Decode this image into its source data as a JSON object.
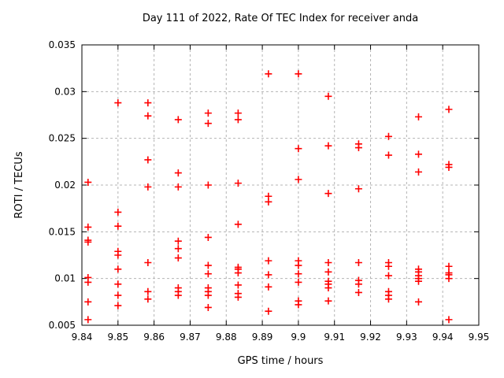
{
  "window": {
    "background": "#ffffff"
  },
  "chart_data": {
    "type": "scatter",
    "title": "Day 111 of 2022, Rate Of TEC Index for receiver anda",
    "xlabel": "GPS time / hours",
    "ylabel": "ROTI / TECUs",
    "xlim": [
      9.84,
      9.95
    ],
    "ylim": [
      0.005,
      0.035
    ],
    "xtick_values": [
      9.84,
      9.85,
      9.86,
      9.87,
      9.88,
      9.89,
      9.9,
      9.91,
      9.92,
      9.93,
      9.94,
      9.95
    ],
    "xtick_labels": [
      "9.84",
      "9.85",
      "9.86",
      "9.87",
      "9.88",
      "9.89",
      "9.9",
      "9.91",
      "9.92",
      "9.93",
      "9.94",
      "9.95"
    ],
    "ytick_values": [
      0.005,
      0.01,
      0.015,
      0.02,
      0.025,
      0.03,
      0.035
    ],
    "ytick_labels": [
      "0.005",
      "0.01",
      "0.015",
      "0.02",
      "0.025",
      "0.03",
      "0.035"
    ],
    "grid": true,
    "grid_color": "#b4b4b4",
    "border_color": "#000000",
    "legend": "none",
    "marker": "plus",
    "series": [
      {
        "name": "ROTI",
        "color": "#ff0000",
        "points": [
          [
            9.8417,
            0.0203
          ],
          [
            9.8417,
            0.0155
          ],
          [
            9.8417,
            0.0141
          ],
          [
            9.8417,
            0.0139
          ],
          [
            9.8417,
            0.0101
          ],
          [
            9.8417,
            0.0096
          ],
          [
            9.8417,
            0.0075
          ],
          [
            9.8417,
            0.0056
          ],
          [
            9.85,
            0.0288
          ],
          [
            9.85,
            0.0171
          ],
          [
            9.85,
            0.0156
          ],
          [
            9.85,
            0.0129
          ],
          [
            9.85,
            0.0125
          ],
          [
            9.85,
            0.011
          ],
          [
            9.85,
            0.0094
          ],
          [
            9.85,
            0.0082
          ],
          [
            9.85,
            0.0071
          ],
          [
            9.8583,
            0.0288
          ],
          [
            9.8583,
            0.0274
          ],
          [
            9.8583,
            0.0227
          ],
          [
            9.8583,
            0.0198
          ],
          [
            9.8583,
            0.0117
          ],
          [
            9.8583,
            0.0086
          ],
          [
            9.8583,
            0.0078
          ],
          [
            9.8667,
            0.027
          ],
          [
            9.8667,
            0.0213
          ],
          [
            9.8667,
            0.0198
          ],
          [
            9.8667,
            0.014
          ],
          [
            9.8667,
            0.0132
          ],
          [
            9.8667,
            0.0122
          ],
          [
            9.8667,
            0.009
          ],
          [
            9.8667,
            0.0086
          ],
          [
            9.8667,
            0.0082
          ],
          [
            9.875,
            0.0277
          ],
          [
            9.875,
            0.0266
          ],
          [
            9.875,
            0.02
          ],
          [
            9.875,
            0.0144
          ],
          [
            9.875,
            0.0114
          ],
          [
            9.875,
            0.0105
          ],
          [
            9.875,
            0.009
          ],
          [
            9.875,
            0.0086
          ],
          [
            9.875,
            0.0082
          ],
          [
            9.875,
            0.0069
          ],
          [
            9.8833,
            0.0277
          ],
          [
            9.8833,
            0.027
          ],
          [
            9.8833,
            0.0202
          ],
          [
            9.8833,
            0.0158
          ],
          [
            9.8833,
            0.0112
          ],
          [
            9.8833,
            0.011
          ],
          [
            9.8833,
            0.0106
          ],
          [
            9.8833,
            0.0093
          ],
          [
            9.8833,
            0.0084
          ],
          [
            9.8833,
            0.008
          ],
          [
            9.8917,
            0.0319
          ],
          [
            9.8917,
            0.0188
          ],
          [
            9.8917,
            0.0182
          ],
          [
            9.8917,
            0.0119
          ],
          [
            9.8917,
            0.0104
          ],
          [
            9.8917,
            0.0091
          ],
          [
            9.8917,
            0.0065
          ],
          [
            9.9,
            0.0319
          ],
          [
            9.9,
            0.0239
          ],
          [
            9.9,
            0.0206
          ],
          [
            9.9,
            0.0119
          ],
          [
            9.9,
            0.0114
          ],
          [
            9.9,
            0.0105
          ],
          [
            9.9,
            0.0096
          ],
          [
            9.9,
            0.0076
          ],
          [
            9.9,
            0.0072
          ],
          [
            9.9083,
            0.0295
          ],
          [
            9.9083,
            0.0242
          ],
          [
            9.9083,
            0.0191
          ],
          [
            9.9083,
            0.0117
          ],
          [
            9.9083,
            0.0107
          ],
          [
            9.9083,
            0.0097
          ],
          [
            9.9083,
            0.0094
          ],
          [
            9.9083,
            0.009
          ],
          [
            9.9083,
            0.0076
          ],
          [
            9.9167,
            0.0244
          ],
          [
            9.9167,
            0.024
          ],
          [
            9.9167,
            0.0196
          ],
          [
            9.9167,
            0.0117
          ],
          [
            9.9167,
            0.0098
          ],
          [
            9.9167,
            0.0094
          ],
          [
            9.9167,
            0.0085
          ],
          [
            9.925,
            0.0252
          ],
          [
            9.925,
            0.0232
          ],
          [
            9.925,
            0.0117
          ],
          [
            9.925,
            0.0113
          ],
          [
            9.925,
            0.0103
          ],
          [
            9.925,
            0.0086
          ],
          [
            9.925,
            0.0082
          ],
          [
            9.925,
            0.0078
          ],
          [
            9.9333,
            0.0273
          ],
          [
            9.9333,
            0.0233
          ],
          [
            9.9333,
            0.0214
          ],
          [
            9.9333,
            0.011
          ],
          [
            9.9333,
            0.0107
          ],
          [
            9.9333,
            0.0103
          ],
          [
            9.9333,
            0.01
          ],
          [
            9.9333,
            0.0097
          ],
          [
            9.9333,
            0.0075
          ],
          [
            9.9417,
            0.0281
          ],
          [
            9.9417,
            0.0222
          ],
          [
            9.9417,
            0.0219
          ],
          [
            9.9417,
            0.0113
          ],
          [
            9.9417,
            0.0106
          ],
          [
            9.9417,
            0.0104
          ],
          [
            9.9417,
            0.01
          ],
          [
            9.9417,
            0.0056
          ]
        ]
      }
    ]
  }
}
